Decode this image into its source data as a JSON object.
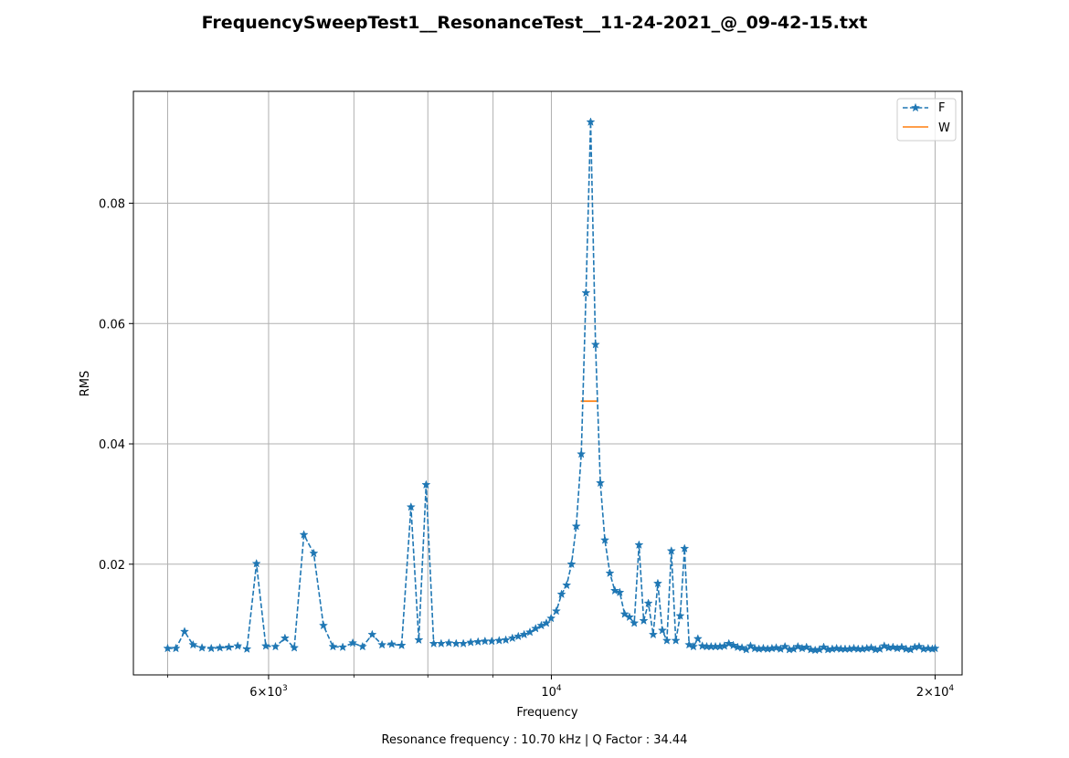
{
  "figure": {
    "title": "FrequencySweepTest1__ResonanceTest__11-24-2021_@_09-42-15.txt",
    "caption": "Resonance frequency : 10.70 kHz | Q Factor : 34.44"
  },
  "chart_data": {
    "type": "line",
    "title": "FrequencySweepTest1__ResonanceTest__11-24-2021_@_09-42-15.txt",
    "xlabel": "Frequency",
    "ylabel": "RMS",
    "xscale": "log",
    "xlim": [
      4700,
      21000
    ],
    "ylim": [
      0.0016,
      0.0986
    ],
    "grid": true,
    "legend_position": "top-right",
    "xticks_major": [
      {
        "value": 6000,
        "base": "6×10",
        "exp": "3"
      },
      {
        "value": 10000,
        "base": "10",
        "exp": "4"
      },
      {
        "value": 20000,
        "base": "2×10",
        "exp": "4"
      }
    ],
    "xticks_minor": [
      5000,
      7000,
      8000,
      9000
    ],
    "yticks": [
      {
        "value": 0.02,
        "label": "0.02"
      },
      {
        "value": 0.04,
        "label": "0.04"
      },
      {
        "value": 0.06,
        "label": "0.06"
      },
      {
        "value": 0.08,
        "label": "0.08"
      }
    ],
    "series": [
      {
        "name": "F",
        "style": "dashed-star",
        "color": "#1f77b4",
        "x": [
          5000,
          5075,
          5155,
          5235,
          5320,
          5410,
          5495,
          5585,
          5675,
          5770,
          5870,
          5970,
          6075,
          6180,
          6285,
          6395,
          6510,
          6625,
          6740,
          6860,
          6985,
          7110,
          7235,
          7365,
          7495,
          7630,
          7760,
          7870,
          7975,
          8085,
          8195,
          8310,
          8420,
          8530,
          8645,
          8760,
          8870,
          8980,
          9100,
          9210,
          9320,
          9420,
          9520,
          9620,
          9720,
          9820,
          9910,
          9995,
          10090,
          10185,
          10280,
          10370,
          10460,
          10555,
          10645,
          10735,
          10830,
          10925,
          11015,
          11115,
          11215,
          11315,
          11415,
          11515,
          11615,
          11715,
          11815,
          11915,
          12020,
          12120,
          12220,
          12320,
          12420,
          12520,
          12620,
          12720,
          12825,
          12925,
          13030,
          13135,
          13240,
          13345,
          13450,
          13560,
          13670,
          13780,
          13890,
          14000,
          14110,
          14220,
          14330,
          14440,
          14550,
          14665,
          14780,
          14895,
          15010,
          15130,
          15250,
          15370,
          15490,
          15610,
          15730,
          15855,
          15980,
          16105,
          16230,
          16355,
          16480,
          16610,
          16740,
          16870,
          17000,
          17135,
          17270,
          17405,
          17540,
          17680,
          17820,
          17960,
          18100,
          18245,
          18390,
          18535,
          18680,
          18830,
          18980,
          19130,
          19280,
          19430,
          19590,
          19750,
          19900,
          20000
        ],
        "y": [
          0.006,
          0.006,
          0.0088,
          0.0066,
          0.0061,
          0.006,
          0.0061,
          0.0062,
          0.0064,
          0.0059,
          0.0201,
          0.0064,
          0.0063,
          0.0077,
          0.0061,
          0.0249,
          0.0218,
          0.0098,
          0.0063,
          0.0062,
          0.0069,
          0.0063,
          0.0083,
          0.0066,
          0.0067,
          0.0065,
          0.0295,
          0.0074,
          0.0332,
          0.0068,
          0.0068,
          0.0069,
          0.0068,
          0.0068,
          0.007,
          0.0071,
          0.0072,
          0.0072,
          0.0073,
          0.0074,
          0.0077,
          0.008,
          0.0083,
          0.0087,
          0.0093,
          0.0098,
          0.0102,
          0.011,
          0.0122,
          0.015,
          0.0165,
          0.02,
          0.0263,
          0.0383,
          0.0651,
          0.0935,
          0.0565,
          0.0335,
          0.024,
          0.0185,
          0.0156,
          0.0153,
          0.0117,
          0.0112,
          0.0102,
          0.0232,
          0.0106,
          0.0135,
          0.0083,
          0.0168,
          0.009,
          0.0073,
          0.0222,
          0.0073,
          0.0114,
          0.0226,
          0.0066,
          0.0063,
          0.0076,
          0.0064,
          0.0063,
          0.0063,
          0.0063,
          0.0063,
          0.0064,
          0.0068,
          0.0065,
          0.0062,
          0.0061,
          0.0058,
          0.0064,
          0.006,
          0.0059,
          0.006,
          0.0059,
          0.006,
          0.0061,
          0.0059,
          0.0063,
          0.0058,
          0.0059,
          0.0063,
          0.006,
          0.0062,
          0.0058,
          0.0057,
          0.0058,
          0.0062,
          0.0058,
          0.0059,
          0.006,
          0.0059,
          0.0059,
          0.0059,
          0.006,
          0.0059,
          0.0059,
          0.006,
          0.0061,
          0.0058,
          0.0059,
          0.0064,
          0.0061,
          0.0062,
          0.006,
          0.0062,
          0.0059,
          0.0058,
          0.0062,
          0.0063,
          0.0059,
          0.006,
          0.0059,
          0.006
        ]
      },
      {
        "name": "W",
        "style": "solid",
        "color": "#ff7f0e",
        "x": [
          10545,
          10880
        ],
        "y": [
          0.0471,
          0.0471
        ]
      }
    ]
  }
}
